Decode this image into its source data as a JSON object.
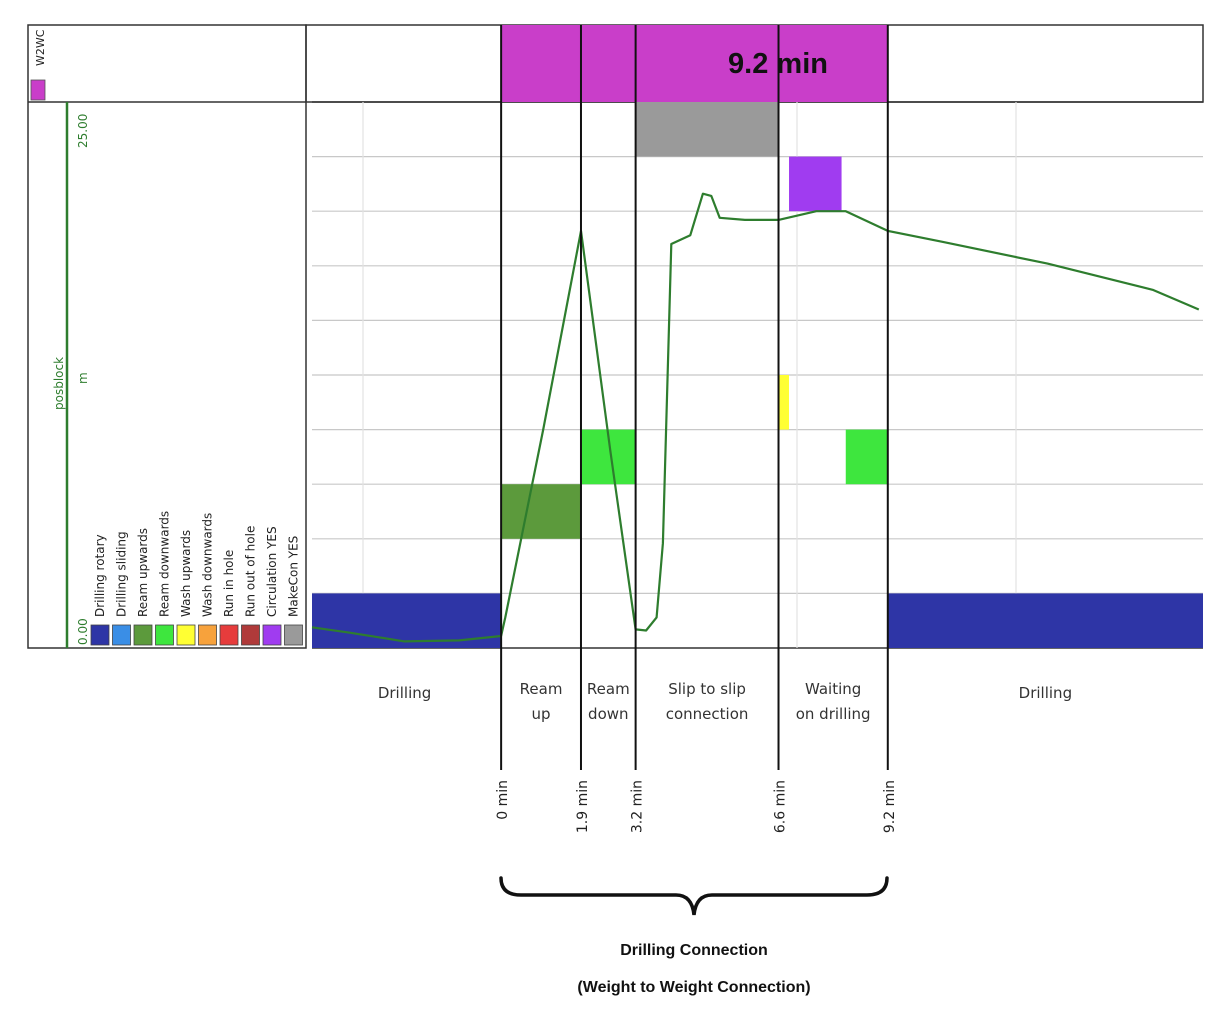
{
  "chart_data": {
    "type": "timeline",
    "header": {
      "row_label": "W2WC",
      "duration_text": "9.2 min",
      "bar_color": "#c93ec9"
    },
    "y_axis": {
      "name": "posblock",
      "unit": "m",
      "max_label": "25.00",
      "min_label": "0.00",
      "ylim": [
        0,
        25
      ],
      "color": "#2e7d2e"
    },
    "legend": [
      {
        "label": "Drilling rotary",
        "color": "#2e35a6"
      },
      {
        "label": "Drilling sliding",
        "color": "#3a8ee6"
      },
      {
        "label": "Ream upwards",
        "color": "#5c9a3c"
      },
      {
        "label": "Ream downwards",
        "color": "#3ee63e"
      },
      {
        "label": "Wash upwards",
        "color": "#ffff33"
      },
      {
        "label": "Wash downwards",
        "color": "#f7a23c"
      },
      {
        "label": "Run in hole",
        "color": "#e63c3c"
      },
      {
        "label": "Run out of hole",
        "color": "#b03a3a"
      },
      {
        "label": "Circulation YES",
        "color": "#a03cf0"
      },
      {
        "label": "MakeCon YES",
        "color": "#9a9a9a"
      }
    ],
    "activities": [
      {
        "label": "Drilling",
        "label2": ""
      },
      {
        "label": "Ream",
        "label2": "up"
      },
      {
        "label": "Ream",
        "label2": "down"
      },
      {
        "label": "Slip to slip",
        "label2": "connection"
      },
      {
        "label": "Waiting",
        "label2": "on drilling"
      },
      {
        "label": "Drilling",
        "label2": ""
      }
    ],
    "time_markers": [
      "0 min",
      "1.9 min",
      "3.2 min",
      "6.6 min",
      "9.2 min"
    ],
    "time_marker_values_min": [
      0,
      1.9,
      3.2,
      6.6,
      9.2
    ],
    "time_range_min": [
      -4.5,
      16.7
    ],
    "state_blocks": [
      {
        "state": "Drilling rotary",
        "x0": -4.5,
        "x1": 0,
        "row": 0
      },
      {
        "state": "Drilling rotary",
        "x0": 9.2,
        "x1": 16.7,
        "row": 0
      },
      {
        "state": "Ream upwards",
        "x0": 0,
        "x1": 1.9,
        "row": 2
      },
      {
        "state": "Ream downwards",
        "x0": 1.9,
        "x1": 3.2,
        "row": 3
      },
      {
        "state": "Ream downwards",
        "x0": 8.2,
        "x1": 9.2,
        "row": 3
      },
      {
        "state": "Wash upwards",
        "x0": 6.6,
        "x1": 6.85,
        "row": 4
      },
      {
        "state": "Circulation YES",
        "x0": 6.85,
        "x1": 8.1,
        "row": 8
      },
      {
        "state": "MakeCon YES",
        "x0": 3.2,
        "x1": 6.6,
        "row": 9
      }
    ],
    "series": [
      {
        "points": [
          [
            -4.5,
            0.95
          ],
          [
            -3.6,
            0.7
          ],
          [
            -2.3,
            0.3
          ],
          [
            -1.0,
            0.35
          ],
          [
            0,
            0.55
          ],
          [
            0.1,
            1.4
          ],
          [
            1.0,
            10.0
          ],
          [
            1.9,
            19.1
          ],
          [
            2.6,
            9.0
          ],
          [
            3.2,
            0.85
          ],
          [
            3.45,
            0.8
          ],
          [
            3.7,
            1.4
          ],
          [
            3.85,
            4.8
          ],
          [
            4.05,
            18.5
          ],
          [
            4.5,
            18.9
          ],
          [
            4.8,
            20.8
          ],
          [
            5.0,
            20.7
          ],
          [
            5.2,
            19.7
          ],
          [
            5.8,
            19.6
          ],
          [
            6.6,
            19.6
          ],
          [
            7.5,
            20.0
          ],
          [
            8.2,
            20.0
          ],
          [
            9.2,
            19.1
          ],
          [
            10.5,
            18.6
          ],
          [
            13.0,
            17.6
          ],
          [
            15.5,
            16.4
          ],
          [
            16.6,
            15.5
          ]
        ]
      }
    ],
    "bracket_title": "Drilling Connection",
    "bracket_subtitle": "(Weight to Weight Connection)"
  }
}
